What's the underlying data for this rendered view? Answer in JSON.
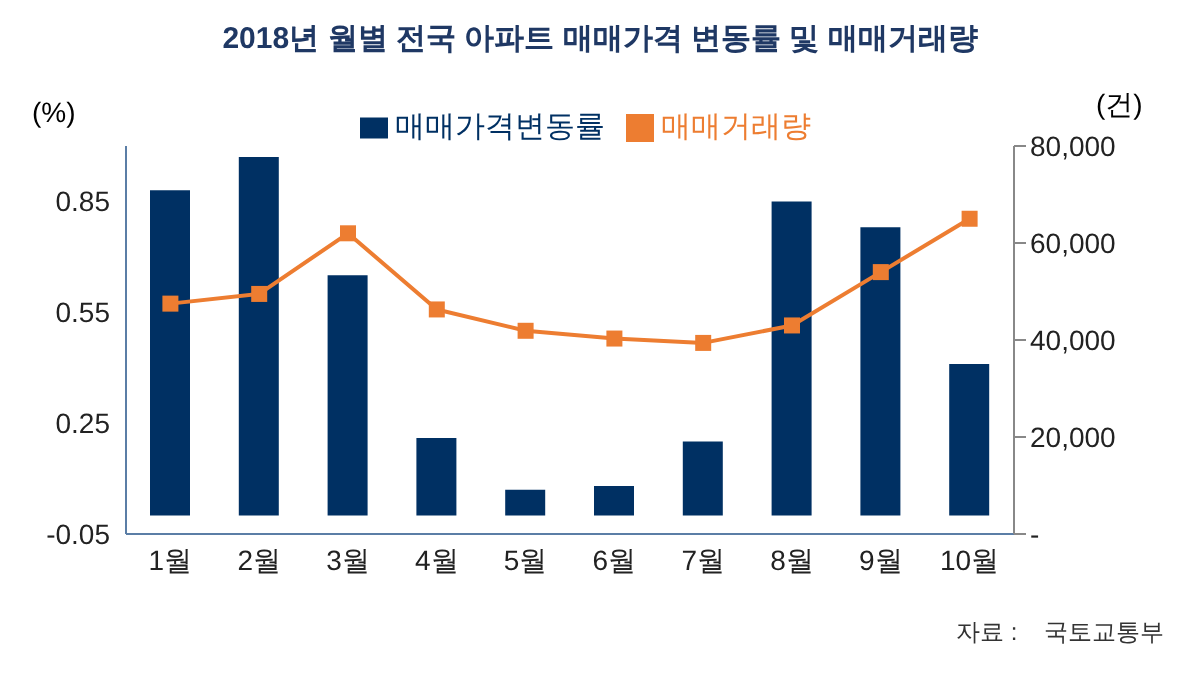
{
  "chart_data": {
    "type": "bar",
    "title": "2018년 월별 전국 아파트 매매가격 변동률 및 매매거래량",
    "categories": [
      "1월",
      "2월",
      "3월",
      "4월",
      "5월",
      "6월",
      "7월",
      "8월",
      "9월",
      "10월"
    ],
    "series": [
      {
        "name": "매매가격변동률",
        "color": "#003063",
        "values": [
          0.88,
          0.97,
          0.65,
          0.21,
          0.07,
          0.08,
          0.2,
          0.85,
          0.78,
          0.41
        ]
      },
      {
        "name": "매매거래량",
        "type": "line",
        "axis": "y2",
        "color": "#ed7d31",
        "values": [
          47500,
          49500,
          62000,
          46300,
          41900,
          40300,
          39400,
          43000,
          54000,
          65000
        ]
      }
    ],
    "ylabel": "(%)",
    "y2label": "(건)",
    "ylim": [
      -0.05,
      1.0
    ],
    "yticks": [
      -0.05,
      0.25,
      0.55,
      0.85
    ],
    "y2lim": [
      0,
      80000
    ],
    "y2ticks": [
      {
        "value": 0,
        "label": "-"
      },
      {
        "value": 20000,
        "label": "20,000"
      },
      {
        "value": 40000,
        "label": "40,000"
      },
      {
        "value": 60000,
        "label": "60,000"
      },
      {
        "value": 80000,
        "label": "80,000"
      }
    ],
    "grid": false,
    "legend": "top",
    "marker": "square",
    "line_style": "solid",
    "annotations": [
      "자료 :    국토교통부"
    ]
  }
}
